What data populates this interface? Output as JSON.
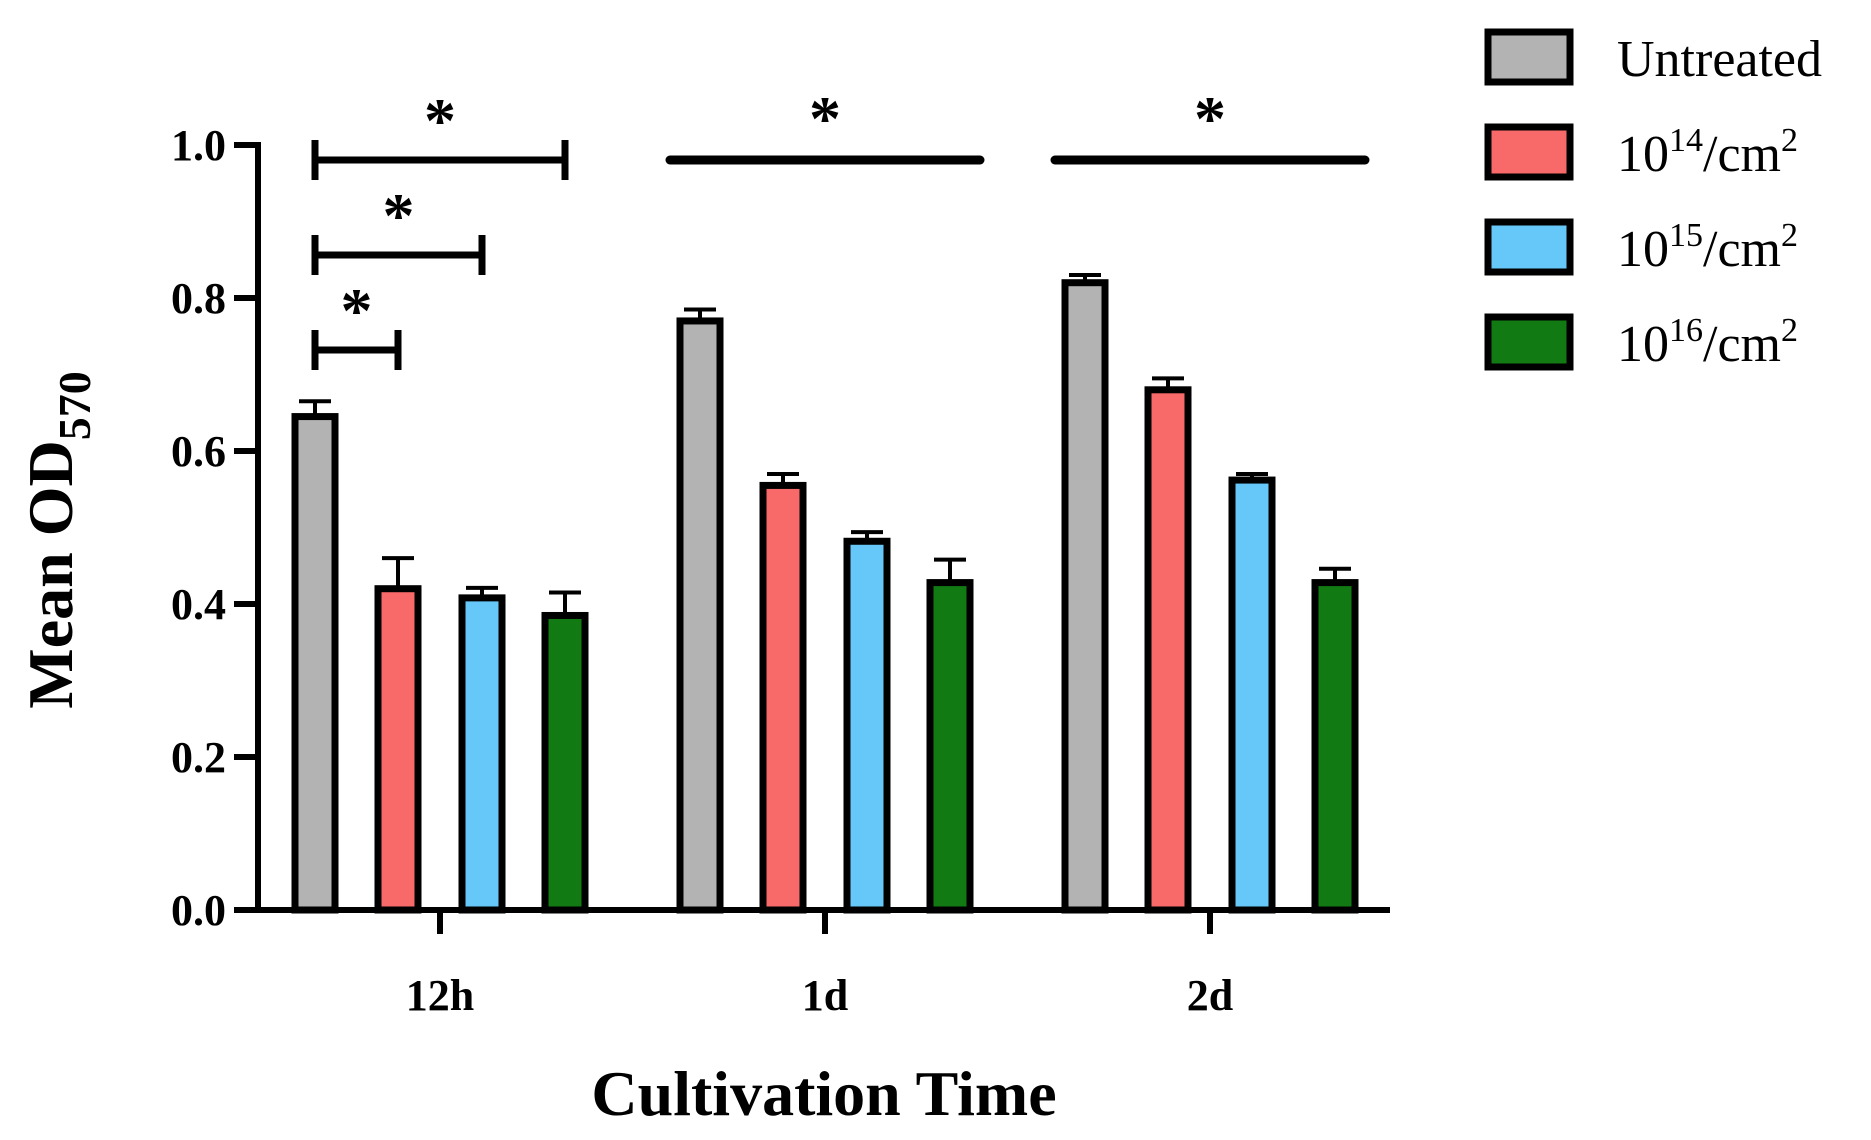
{
  "chart_data": {
    "type": "bar",
    "title": "",
    "xlabel": "Cultivation Time",
    "ylabel": "Mean OD",
    "ylabel_subscript": "570",
    "ylim": [
      0,
      1.0
    ],
    "yticks": [
      "0.0",
      "0.2",
      "0.4",
      "0.6",
      "0.8",
      "1.0"
    ],
    "categories": [
      "12h",
      "1d",
      "2d"
    ],
    "series": [
      {
        "name": "Untreated",
        "base": "Untreated",
        "sup": "",
        "suffix": "",
        "sup2": "",
        "color": "#b3b3b3",
        "values": [
          0.645,
          0.77,
          0.82
        ],
        "errors": [
          0.02,
          0.015,
          0.01
        ]
      },
      {
        "name": "10^14/cm^2",
        "base": "10",
        "sup": "14",
        "suffix": "/cm",
        "sup2": "2",
        "color": "#f86a6a",
        "values": [
          0.42,
          0.555,
          0.68
        ],
        "errors": [
          0.04,
          0.015,
          0.015
        ]
      },
      {
        "name": "10^15/cm^2",
        "base": "10",
        "sup": "15",
        "suffix": "/cm",
        "sup2": "2",
        "color": "#66c8f8",
        "values": [
          0.408,
          0.482,
          0.562
        ],
        "errors": [
          0.013,
          0.012,
          0.008
        ]
      },
      {
        "name": "10^16/cm^2",
        "base": "10",
        "sup": "16",
        "suffix": "/cm",
        "sup2": "2",
        "color": "#127a12",
        "values": [
          0.385,
          0.428,
          0.428
        ],
        "errors": [
          0.03,
          0.03,
          0.018
        ]
      }
    ],
    "legend_position": "top-right",
    "significance": [
      {
        "label": "*",
        "category": 0,
        "from_series": 0,
        "to_series": 3,
        "style": "bracket"
      },
      {
        "label": "*",
        "category": 0,
        "from_series": 0,
        "to_series": 2,
        "style": "bracket"
      },
      {
        "label": "*",
        "category": 0,
        "from_series": 0,
        "to_series": 1,
        "style": "bracket"
      },
      {
        "label": "*",
        "category": 1,
        "from_series": 0,
        "to_series": 3,
        "style": "line"
      },
      {
        "label": "*",
        "category": 2,
        "from_series": 0,
        "to_series": 3,
        "style": "line"
      }
    ]
  }
}
